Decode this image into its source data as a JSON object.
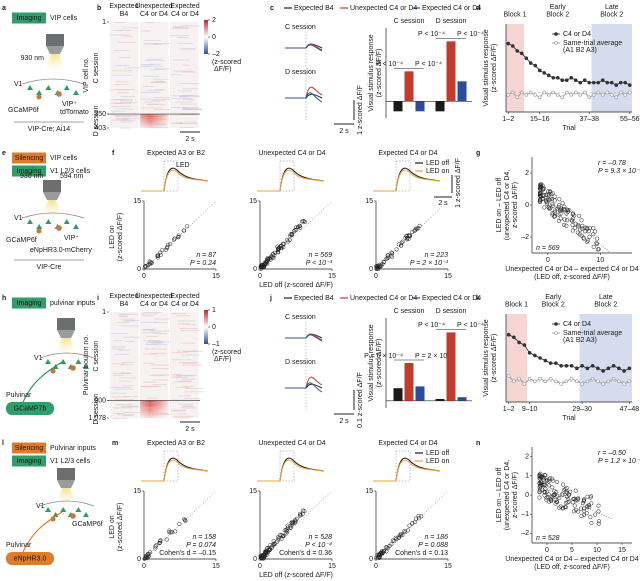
{
  "panel_a": {
    "label": "a",
    "tags": [
      {
        "tag": "Imaging",
        "title": "VIP cells",
        "color": "#2e9e6b"
      }
    ],
    "laser": "930 nm",
    "area": "V1",
    "cells": [
      "GCaMP6f",
      "VIP⁺",
      "tdTomato"
    ],
    "genotype": "VIP-Cre; Ai14"
  },
  "panel_b": {
    "label": "b",
    "columns": [
      [
        "Expected",
        "B4"
      ],
      [
        "Unexpected",
        "C4 or D4"
      ],
      [
        "Expected",
        "C4 or D4"
      ]
    ],
    "ylabel": "VIP cell no.",
    "sessions": [
      "C session",
      "D session"
    ],
    "rowticks": [
      1,
      350,
      403
    ],
    "colorbar": {
      "ticks": [
        2,
        0,
        {
          "value": -2,
          "label": "–2"
        }
      ],
      "label": [
        "(z-scored",
        "ΔF/F)"
      ]
    },
    "scale": "2 s"
  },
  "panel_c": {
    "label": "c",
    "trace_labels": [
      "C session",
      "D session"
    ],
    "scale_y": "1 z-scored ΔF/F",
    "scale_x": "2 s",
    "chart": {
      "type": "bar",
      "ylabel": [
        "Visual stimulus response",
        "(z-scored ΔF/F)"
      ],
      "categories": [
        "C session",
        "D session"
      ],
      "ylim": [
        -0.5,
        2.2
      ],
      "series": [
        {
          "name": "Expected B4",
          "color": "#1a1a1a",
          "values": [
            -0.3,
            -0.3
          ]
        },
        {
          "name": "Unexpected C4 or D4",
          "color": "#c23b2c",
          "values": [
            0.9,
            1.8
          ]
        },
        {
          "name": "Expected C4 or D4",
          "color": "#2b4c9b",
          "values": [
            -0.3,
            0.6
          ]
        }
      ],
      "annotations": [
        [
          "P < 10⁻⁴",
          "P < 10⁻⁴"
        ],
        [
          "P < 10⁻⁴",
          "P < 10⁻⁴"
        ]
      ]
    }
  },
  "panel_d": {
    "label": "d",
    "regions": [
      {
        "label": [
          "Block 1"
        ],
        "from": 0.5,
        "to": 4.5,
        "color": "#f6d6d3"
      },
      {
        "label": [
          "Early",
          "Block 2"
        ]
      },
      {
        "label": [
          "Late",
          "Block 2"
        ],
        "from": 19.5,
        "to": 28.5,
        "color": "#d5dcee"
      }
    ],
    "chart": {
      "type": "line",
      "xlabel": "Trial",
      "ylabel": [
        "Visual stimulus response",
        "(z-scored ΔF/F)"
      ],
      "xlim": [
        0.5,
        28.5
      ],
      "ylim": [
        -0.4,
        1.4
      ],
      "xticks": [
        {
          "value": 1,
          "label": "1–2"
        },
        {
          "value": 8,
          "label": "15–16"
        },
        {
          "value": 19,
          "label": "37–38"
        },
        {
          "value": 28,
          "label": "55–56"
        }
      ],
      "x": [
        1,
        2,
        3,
        4,
        5,
        6,
        7,
        8,
        9,
        10,
        11,
        12,
        13,
        14,
        15,
        16,
        17,
        18,
        19,
        20,
        21,
        22,
        23,
        24,
        25,
        26,
        27,
        28
      ],
      "series": [
        {
          "name": "C4 or D4",
          "color": "#333333",
          "values": [
            1.0,
            0.95,
            0.85,
            0.8,
            0.7,
            0.6,
            0.55,
            0.45,
            0.4,
            0.35,
            0.3,
            0.3,
            0.25,
            0.25,
            0.3,
            0.25,
            0.2,
            0.25,
            0.2,
            0.2,
            0.2,
            0.25,
            0.2,
            0.2,
            0.15,
            0.2,
            0.2,
            0.15
          ]
        },
        {
          "name": "Same-trial average",
          "note": "(A1 B2 A3)",
          "color": "#9a9a9a",
          "values": [
            -0.05,
            0.0,
            -0.1,
            0.0,
            -0.05,
            0.0,
            -0.05,
            -0.1,
            0.0,
            -0.05,
            0.0,
            -0.05,
            -0.1,
            0.0,
            -0.05,
            0.0,
            -0.05,
            0.0,
            -0.1,
            -0.05,
            0.0,
            -0.05,
            0.0,
            -0.05,
            -0.1,
            0.0,
            -0.05,
            0.0
          ]
        }
      ]
    }
  },
  "panel_e": {
    "label": "e",
    "tags": [
      {
        "tag": "Silencing",
        "title": "VIP cells",
        "color": "#e07b2a"
      },
      {
        "tag": "Imaging",
        "title": "V1 L2/3 cells",
        "color": "#2e9e6b"
      }
    ],
    "lasers": [
      "930 nm",
      "594 nm"
    ],
    "area": "V1",
    "cells": [
      "GCaMP6f",
      "VIP⁺",
      "eNpHR3.0-mCherry"
    ],
    "genotype": "VIP-Cre"
  },
  "panel_f": {
    "label": "f",
    "legend": [
      {
        "name": "LED off",
        "color": "#1a1a1a"
      },
      {
        "name": "LED on",
        "color": "#e9a53c"
      }
    ],
    "led": "LED",
    "scale_y": "1 z-scored ΔF/F",
    "scale_x": "2 s",
    "xlabel": "LED off (z-scored ΔF/F)",
    "ylabel": [
      "LED on",
      "(z-scored ΔF/F)"
    ],
    "ticks": [
      0,
      15
    ],
    "plots": [
      {
        "title": "Expected A3 or B2",
        "n": "n = 87",
        "P": "P = 0.24"
      },
      {
        "title": "Unexpected C4 or D4",
        "n": "n = 569",
        "P": "P < 10⁻³"
      },
      {
        "title": "Expected C4 or D4",
        "n": "n = 223",
        "P": "P = 2 × 10⁻³"
      }
    ]
  },
  "panel_g": {
    "label": "g",
    "r": "r = –0.78",
    "P": "P = 9.3 × 10⁻¹²⁰",
    "n": "n = 569",
    "xlabel": [
      "Unexpected C4 or D4 – expected C4 or D4",
      "(LED off, z-scored ΔF/F)"
    ],
    "ylabel": [
      "LED on – LED off",
      "(unexpected C4 or D4,",
      "z-scored ΔF/F)"
    ],
    "xlim": [
      -3,
      16
    ],
    "ylim": [
      -3,
      3
    ],
    "xticks": [
      0,
      10
    ],
    "yticks": [
      2,
      0,
      {
        "value": -2,
        "label": "–2"
      }
    ]
  },
  "panel_h": {
    "label": "h",
    "tags": [
      {
        "tag": "Imaging",
        "title": "pulvinar inputs",
        "color": "#2e9e6b"
      }
    ],
    "area": "V1",
    "source": "Pulvinar",
    "indicator": "GCaMP7b"
  },
  "panel_i": {
    "label": "i",
    "columns": [
      [
        "Expected",
        "B4"
      ],
      [
        "Unexpected",
        "C4 or D4"
      ],
      [
        "Expected",
        "C4 or D4"
      ]
    ],
    "ylabel": "Pulvinar bouton no.",
    "sessions": [
      "C session",
      "D session"
    ],
    "rowticks": [
      1,
      900,
      {
        "value": 1078,
        "label": "1,078"
      }
    ],
    "colorbar": {
      "ticks": [
        1,
        0,
        {
          "value": -1,
          "label": "–1"
        }
      ],
      "label": [
        "(z-scored",
        "ΔF/F)"
      ]
    },
    "scale": "2 s"
  },
  "panel_j": {
    "label": "j",
    "trace_labels": [
      "C session",
      "D session"
    ],
    "scale_y": "0.1 z-scored ΔF/F",
    "scale_x": "2 s",
    "chart": {
      "type": "bar",
      "ylabel": [
        "Visual stimulus response",
        "(z-scored ΔF/F)"
      ],
      "categories": [
        "C session",
        "D session"
      ],
      "ylim": [
        -0.2,
        2.3
      ],
      "series": [
        {
          "name": "Expected B4",
          "color": "#1a1a1a",
          "values": [
            0.35,
            0.05
          ]
        },
        {
          "name": "Unexpected C4 or D4",
          "color": "#c23b2c",
          "values": [
            1.05,
            1.9
          ]
        },
        {
          "name": "Expected C4 or D4",
          "color": "#2b4c9b",
          "values": [
            0.4,
            0.1
          ]
        }
      ],
      "annotations": [
        [
          "P = 6 × 10⁻⁴",
          "P = 2 × 10⁻⁴"
        ],
        [
          "P < 10⁻⁴",
          "P < 10⁻⁴"
        ]
      ]
    }
  },
  "panel_k": {
    "label": "k",
    "regions": [
      {
        "label": [
          "Block 1"
        ],
        "from": 0.5,
        "to": 4.5,
        "color": "#f6d6d3"
      },
      {
        "label": [
          "Early",
          "Block 2"
        ]
      },
      {
        "label": [
          "Late",
          "Block 2"
        ],
        "from": 14.5,
        "to": 24.5,
        "color": "#d5dcee"
      }
    ],
    "chart": {
      "type": "line",
      "xlabel": "Trial",
      "ylabel": [
        "Visual stimulus response",
        "(z-scored ΔF/F)"
      ],
      "xlim": [
        0.5,
        24.5
      ],
      "ylim": [
        -0.4,
        1.3
      ],
      "xticks": [
        {
          "value": 1,
          "label": "1–2"
        },
        {
          "value": 5,
          "label": "9–10"
        },
        {
          "value": 15,
          "label": "29–30"
        },
        {
          "value": 24,
          "label": "47–48"
        }
      ],
      "x": [
        1,
        2,
        3,
        4,
        5,
        6,
        7,
        8,
        9,
        10,
        11,
        12,
        13,
        14,
        15,
        16,
        17,
        18,
        19,
        20,
        21,
        22,
        23,
        24
      ],
      "series": [
        {
          "name": "C4 or D4",
          "color": "#333333",
          "values": [
            0.9,
            0.85,
            0.75,
            0.7,
            0.55,
            0.5,
            0.45,
            0.4,
            0.35,
            0.35,
            0.3,
            0.3,
            0.3,
            0.25,
            0.3,
            0.25,
            0.3,
            0.25,
            0.2,
            0.25,
            0.3,
            0.25,
            0.2,
            0.25
          ]
        },
        {
          "name": "Same-trial average",
          "note": "(A1 B2 A3)",
          "color": "#9a9a9a",
          "values": [
            0.1,
            0.0,
            0.05,
            -0.05,
            0.05,
            0.0,
            0.05,
            0.0,
            0.05,
            0.0,
            -0.05,
            0.0,
            0.05,
            0.0,
            -0.05,
            0.0,
            0.05,
            0.0,
            -0.05,
            0.0,
            0.05,
            0.0,
            -0.05,
            0.0
          ]
        }
      ]
    }
  },
  "panel_l": {
    "label": "l",
    "tags": [
      {
        "tag": "Silencing",
        "title": "Pulvinar inputs",
        "color": "#e07b2a"
      },
      {
        "tag": "Imaging",
        "title": "V1 L2/3 cells",
        "color": "#2e9e6b"
      }
    ],
    "area": "V1",
    "cells": [
      "GCaMP6f"
    ],
    "source": "Pulvinar",
    "indicator": "eNpHR3.0"
  },
  "panel_m": {
    "label": "m",
    "legend": [
      {
        "name": "LED off",
        "color": "#1a1a1a"
      },
      {
        "name": "LED on",
        "color": "#e9a53c"
      }
    ],
    "xlabel": "LED off (z-scored ΔF/F)",
    "ylabel": [
      "LED on",
      "(z-scored ΔF/F)"
    ],
    "ticks": [
      0,
      15
    ],
    "plots": [
      {
        "title": "Expected A3 or B2",
        "n": "n = 158",
        "P": "P = 0.074",
        "d": "Cohen's d = –0.15"
      },
      {
        "title": "Unexpected C4 or D4",
        "n": "n = 528",
        "P": "P < 10⁻⁴",
        "d": "Cohen's d = 0.36"
      },
      {
        "title": "Expected C4 or D4",
        "n": "n = 186",
        "P": "P = 0.088",
        "d": "Cohen's d = 0.13"
      }
    ]
  },
  "panel_n": {
    "label": "n",
    "r": "r = –0.50",
    "P": "P = 1.2 × 10⁻³⁴",
    "n": "n = 528",
    "xlabel": [
      "Unexpected C4 or D4 – expected C4 or D4",
      "(LED off, z-scored ΔF/F)"
    ],
    "ylabel": [
      "LED on – LED off",
      "(unexpected C4 or D4,",
      "z-scored ΔF/F)"
    ],
    "xlim": [
      -3,
      17
    ],
    "ylim": [
      -2.5,
      2.5
    ],
    "xticks": [
      0,
      5,
      10,
      15
    ],
    "yticks": [
      2,
      1,
      0,
      {
        "value": -1,
        "label": "–1"
      },
      {
        "value": -2,
        "label": "–2"
      }
    ]
  }
}
